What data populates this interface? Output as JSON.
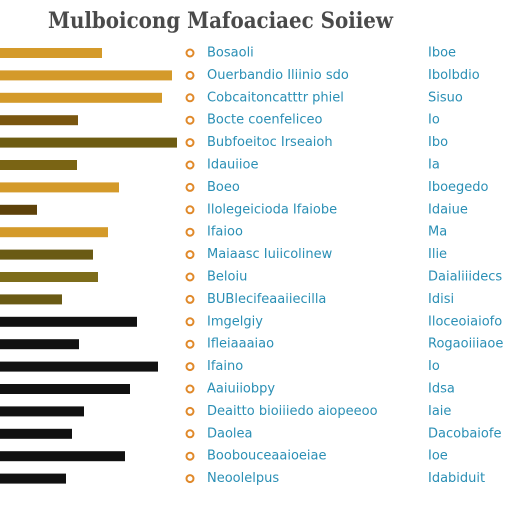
{
  "chart_data": {
    "type": "bar",
    "orientation": "horizontal",
    "title": "Mulboicong Mafoaciaec Soiiew",
    "categories": [
      "Bosaoli",
      "Ouerbandio Iliinio sdo",
      "Cobcaitoncatttr phiel",
      "Bocte coenfeliceo",
      "Bubfoeitoc Irseaioh",
      "Idauiioe",
      "Boeo",
      "Ilolegeicioda Ifaiobe",
      "Ifaioo",
      "Maiaasc Iuiicolinew",
      "Beloiu",
      "BUBlecifeaaiiecilla",
      "Imgelgiy",
      "Ifleiaaaiao",
      "Ifaino",
      "Aaiuiiobpy",
      "Deaitto bioiiiedo aiopeeoo",
      "Daolea",
      "Boobouceaaioeiae",
      "Neoolelpus"
    ],
    "right_labels": [
      "Iboe",
      "Ibolbdio",
      "Sisuo",
      "Io",
      "Ibo",
      "Ia",
      "Iboegedo",
      "Idaiue",
      "Ma",
      "Ilie",
      "Daialiiidecs",
      "Idisi",
      "Iloceoiaiofo",
      "Rogaoiiiaoe",
      "Io",
      "Idsa",
      "Iaie",
      "Dacobaiofe",
      "Ioe",
      "Idabiduit"
    ],
    "values": [
      102,
      172,
      162,
      78,
      177,
      77,
      119,
      37,
      108,
      93,
      98,
      62,
      137,
      79,
      158,
      130,
      84,
      72,
      125,
      66
    ],
    "colors": [
      "#d49a2a",
      "#d49a2a",
      "#d49a2a",
      "#7a5610",
      "#6e5c12",
      "#7a6414",
      "#d49a2a",
      "#5e420a",
      "#d49a2a",
      "#6a5a14",
      "#7d6c1a",
      "#6a5a14",
      "#111111",
      "#111111",
      "#111111",
      "#111111",
      "#111111",
      "#111111",
      "#111111",
      "#111111"
    ]
  }
}
